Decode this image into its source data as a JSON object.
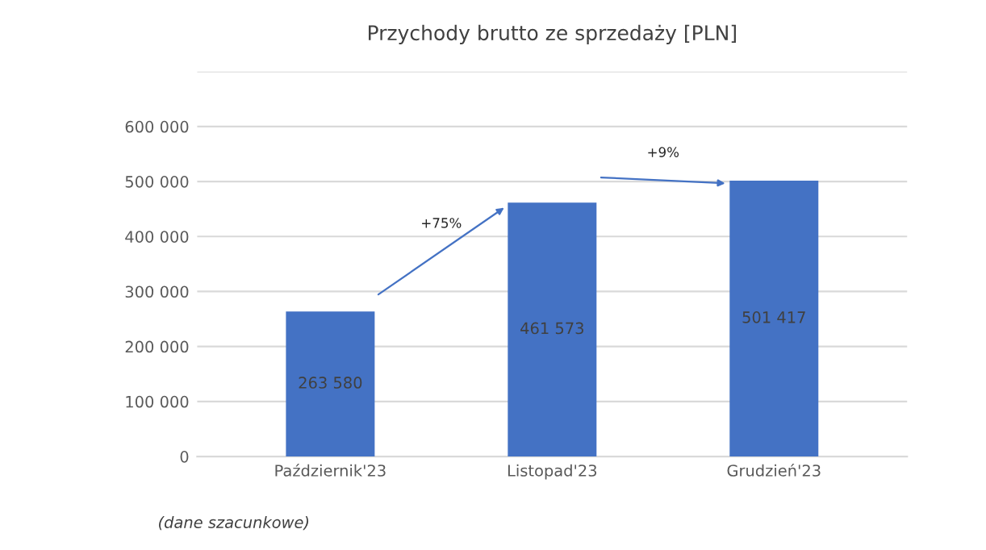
{
  "chart_data": {
    "type": "bar",
    "title": "Przychody brutto ze sprzedaży [PLN]",
    "categories": [
      "Październik'23",
      "Listopad'23",
      "Grudzień'23"
    ],
    "values": [
      263580,
      461573,
      501417
    ],
    "value_labels": [
      "263 580",
      "461 573",
      "501 417"
    ],
    "color": "#4472c4",
    "ylim": [
      0,
      700000
    ],
    "yticks": [
      {
        "value": 0,
        "label": "0"
      },
      {
        "value": 100000,
        "label": "100 000"
      },
      {
        "value": 200000,
        "label": "200 000"
      },
      {
        "value": 300000,
        "label": "300 000"
      },
      {
        "value": 400000,
        "label": "400 000"
      },
      {
        "value": 500000,
        "label": "500 000"
      },
      {
        "value": 600000,
        "label": "600 000"
      },
      {
        "value": 700000,
        "label": null
      }
    ],
    "grid": "y",
    "annotations": [
      "+75%",
      "+9%",
      "(dane szacunkowe)"
    ]
  }
}
